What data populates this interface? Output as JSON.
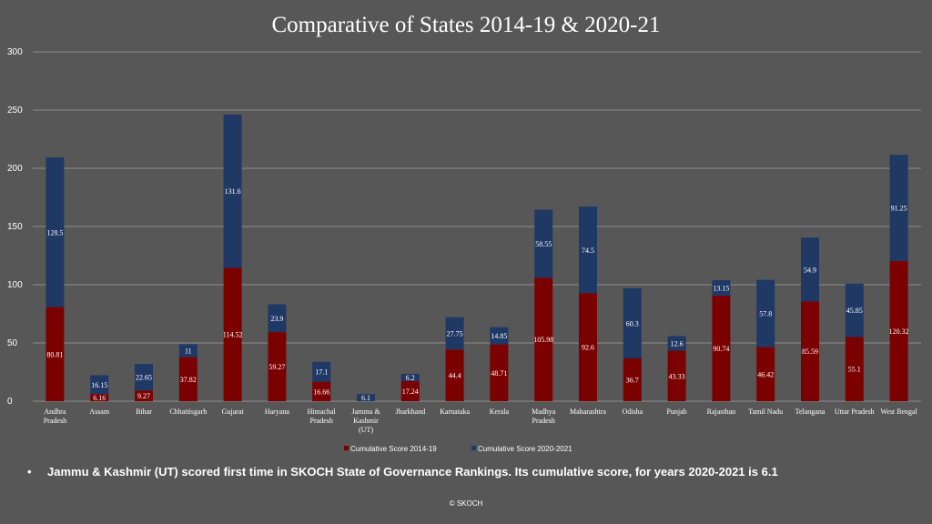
{
  "chart_data": {
    "type": "bar",
    "stacked": true,
    "title": "Comparative of States 2014-19 & 2020-21",
    "xlabel": "",
    "ylabel": "",
    "ylim": [
      0,
      300
    ],
    "yticks": [
      0,
      50,
      100,
      150,
      200,
      250,
      300
    ],
    "grid": true,
    "legend_position": "bottom",
    "categories": [
      [
        "Andhra",
        "Pradesh"
      ],
      [
        "Assam"
      ],
      [
        "Bihar"
      ],
      [
        "Chhattisgarh"
      ],
      [
        "Gujarat"
      ],
      [
        "Haryana"
      ],
      [
        "Himachal",
        "Pradesh"
      ],
      [
        "Jammu &",
        "Kashmir",
        "(UT)"
      ],
      [
        "Jharkhand"
      ],
      [
        "Karnataka"
      ],
      [
        "Kerala"
      ],
      [
        "Madhya",
        "Pradesh"
      ],
      [
        "Maharashtra"
      ],
      [
        "Odisha"
      ],
      [
        "Punjab"
      ],
      [
        "Rajasthan"
      ],
      [
        "Tamil Nadu"
      ],
      [
        "Telangana"
      ],
      [
        "Uttar Pradesh"
      ],
      [
        "West Bengal"
      ]
    ],
    "series": [
      {
        "name": "Cumulative Score 2014-19",
        "color": "#7b0000",
        "values": [
          80.81,
          6.16,
          9.27,
          37.82,
          114.52,
          59.27,
          16.66,
          null,
          17.24,
          44.4,
          48.71,
          105.98,
          92.6,
          36.7,
          43.33,
          90.74,
          46.42,
          85.59,
          55.1,
          120.32
        ],
        "labels": [
          "80.81",
          "6.16",
          "9.27",
          "37.82",
          "114.52",
          "59.27",
          "16.66",
          "",
          "17.24",
          "44.4",
          "48.71",
          "105.98",
          "92.6",
          "36.7",
          "43.33",
          "90.74",
          "46.42",
          "85.59",
          "55.1",
          "120.32"
        ]
      },
      {
        "name": "Cumulative Score 2020-2021",
        "color": "#1f3864",
        "values": [
          128.5,
          16.15,
          22.65,
          11,
          131.6,
          23.9,
          17.1,
          6.1,
          6.2,
          27.75,
          14.85,
          58.55,
          74.5,
          60.3,
          12.6,
          13.15,
          57.8,
          54.9,
          45.85,
          91.25
        ],
        "labels": [
          "128.5",
          "16.15",
          "22.65",
          "11",
          "131.6",
          "23.9",
          "17.1",
          "6.1",
          "6.2",
          "27.75",
          "14.85",
          "58.55",
          "74.5",
          "60.3",
          "12.6",
          "13.15",
          "57.8",
          "54.9",
          "45.85",
          "91.25"
        ]
      }
    ]
  },
  "note": {
    "bullet": "•",
    "text": "Jammu & Kashmir (UT) scored first time in SKOCH State of Governance Rankings. Its cumulative score, for years 2020-2021  is 6.1"
  },
  "footer": "© SKOCH",
  "colors": {
    "background": "#575757",
    "gridline": "#8c8c8c"
  }
}
